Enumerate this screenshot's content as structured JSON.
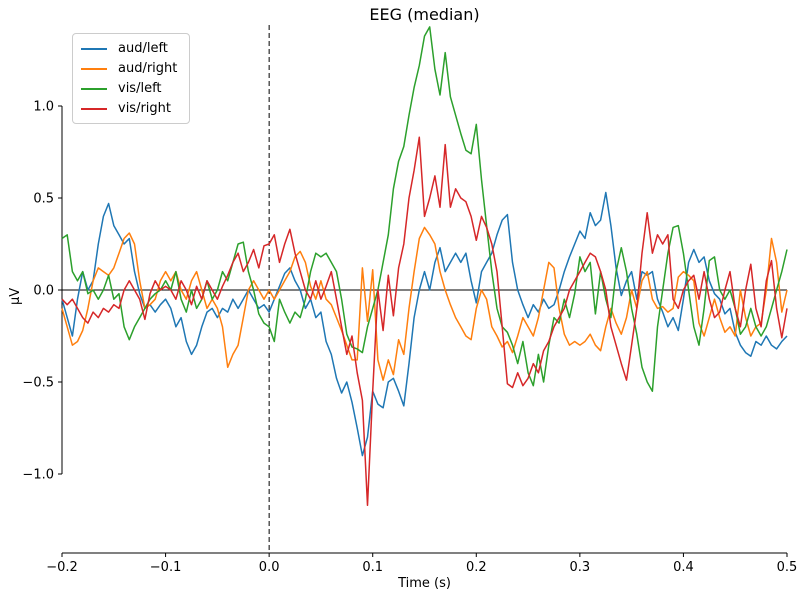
{
  "title": "EEG (median)",
  "xlabel": "Time (s)",
  "ylabel": "µV",
  "axes": {
    "x_tick_labels": [
      "−0.2",
      "−0.1",
      "0.0",
      "0.1",
      "0.2",
      "0.3",
      "0.4",
      "0.5"
    ],
    "x_tick_values": [
      -0.2,
      -0.1,
      0.0,
      0.1,
      0.2,
      0.3,
      0.4,
      0.5
    ],
    "y_tick_labels": [
      "1.0",
      "0.5",
      "0.0",
      "−0.5",
      "−1.0"
    ],
    "y_tick_values": [
      1.0,
      0.5,
      0.0,
      -0.5,
      -1.0
    ]
  },
  "legend": {
    "position": "upper-left",
    "items": [
      {
        "label": "aud/left",
        "color": "#1f77b4"
      },
      {
        "label": "aud/right",
        "color": "#ff7f0e"
      },
      {
        "label": "vis/left",
        "color": "#2ca02c"
      },
      {
        "label": "vis/right",
        "color": "#d62728"
      }
    ]
  },
  "chart_data": {
    "type": "line",
    "title": "EEG (median)",
    "xlabel": "Time (s)",
    "ylabel": "µV",
    "xlim": [
      -0.2,
      0.5
    ],
    "ylim": [
      -1.44,
      1.44
    ],
    "grid": false,
    "legend_position": "upper left",
    "annotations": {
      "vline_x": 0.0,
      "vline_style": "dashed",
      "hline_y": 0.0,
      "hline_style": "solid"
    },
    "x_start": -0.2,
    "x_step": 0.005,
    "series": [
      {
        "name": "aud/left",
        "color": "#1f77b4",
        "values": [
          -0.05,
          -0.15,
          -0.25,
          -0.05,
          0.1,
          0.0,
          0.05,
          0.25,
          0.4,
          0.47,
          0.35,
          0.3,
          0.25,
          0.28,
          0.1,
          -0.02,
          -0.1,
          -0.08,
          -0.12,
          -0.08,
          -0.05,
          -0.1,
          -0.2,
          -0.15,
          -0.28,
          -0.35,
          -0.3,
          -0.2,
          -0.12,
          -0.1,
          -0.15,
          -0.1,
          -0.12,
          -0.05,
          -0.1,
          -0.05,
          0.0,
          -0.05,
          -0.1,
          -0.08,
          -0.12,
          -0.05,
          0.02,
          0.09,
          0.12,
          0.05,
          0.0,
          -0.1,
          -0.05,
          -0.15,
          -0.12,
          -0.28,
          -0.35,
          -0.48,
          -0.56,
          -0.5,
          -0.61,
          -0.75,
          -0.9,
          -0.8,
          -0.55,
          -0.62,
          -0.64,
          -0.5,
          -0.48,
          -0.55,
          -0.63,
          -0.4,
          -0.15,
          0.0,
          0.1,
          0.0,
          0.15,
          0.23,
          0.1,
          0.15,
          0.2,
          0.15,
          0.2,
          0.05,
          -0.07,
          0.1,
          0.15,
          0.2,
          0.3,
          0.38,
          0.41,
          0.15,
          0.0,
          -0.08,
          -0.15,
          -0.08,
          -0.12,
          -0.05,
          -0.1,
          -0.08,
          0.0,
          0.1,
          0.18,
          0.25,
          0.32,
          0.28,
          0.42,
          0.35,
          0.38,
          0.53,
          0.35,
          0.12,
          -0.03,
          0.05,
          0.1,
          -0.05,
          0.1,
          0.08,
          0.1,
          -0.05,
          -0.12,
          -0.2,
          -0.15,
          -0.22,
          -0.05,
          0.15,
          0.22,
          0.15,
          0.18,
          0.05,
          -0.02,
          -0.05,
          -0.13,
          -0.1,
          -0.23,
          -0.3,
          -0.34,
          -0.36,
          -0.28,
          -0.3,
          -0.25,
          -0.3,
          -0.32,
          -0.28,
          -0.25
        ]
      },
      {
        "name": "aud/right",
        "color": "#ff7f0e",
        "values": [
          -0.1,
          -0.2,
          -0.3,
          -0.28,
          -0.22,
          -0.1,
          0.05,
          0.12,
          0.1,
          0.08,
          0.12,
          0.2,
          0.28,
          0.31,
          0.25,
          0.05,
          -0.1,
          -0.08,
          -0.05,
          0.05,
          0.1,
          0.05,
          0.1,
          0.0,
          -0.05,
          0.05,
          0.1,
          0.0,
          -0.1,
          -0.05,
          -0.1,
          -0.2,
          -0.42,
          -0.35,
          -0.3,
          -0.15,
          0.0,
          0.05,
          0.0,
          -0.05,
          0.0,
          -0.05,
          0.0,
          0.05,
          0.1,
          0.18,
          0.21,
          0.15,
          0.02,
          -0.05,
          0.05,
          -0.05,
          -0.08,
          -0.15,
          -0.22,
          -0.3,
          -0.38,
          -0.38,
          0.12,
          -0.17,
          0.11,
          -0.38,
          -0.49,
          -0.38,
          -0.46,
          -0.27,
          -0.35,
          -0.1,
          0.1,
          0.28,
          0.34,
          0.3,
          0.25,
          0.1,
          0.0,
          -0.08,
          -0.15,
          -0.2,
          -0.25,
          -0.27,
          -0.1,
          0.0,
          -0.05,
          -0.2,
          -0.25,
          -0.31,
          -0.28,
          -0.34,
          -0.25,
          -0.15,
          -0.2,
          -0.25,
          -0.15,
          0.0,
          0.15,
          0.12,
          -0.1,
          -0.24,
          -0.3,
          -0.28,
          -0.3,
          -0.28,
          -0.24,
          -0.3,
          -0.33,
          -0.2,
          -0.1,
          -0.18,
          -0.24,
          -0.15,
          0.0,
          -0.1,
          0.05,
          0.1,
          -0.05,
          -0.1,
          -0.09,
          -0.12,
          -0.1,
          0.07,
          0.1,
          0.08,
          0.05,
          -0.18,
          -0.25,
          -0.15,
          -0.05,
          -0.15,
          -0.23,
          -0.2,
          -0.25,
          0.0,
          -0.15,
          -0.25,
          -0.2,
          -0.18,
          0.0,
          0.28,
          0.15,
          -0.12,
          0.0
        ]
      },
      {
        "name": "vis/left",
        "color": "#2ca02c",
        "values": [
          0.28,
          0.3,
          0.1,
          0.05,
          0.1,
          -0.02,
          0.0,
          -0.05,
          0.0,
          0.08,
          -0.05,
          -0.02,
          -0.2,
          -0.27,
          -0.2,
          -0.15,
          -0.1,
          -0.05,
          -0.02,
          0.0,
          0.05,
          0.0,
          0.1,
          -0.05,
          -0.12,
          0.0,
          -0.1,
          -0.05,
          0.05,
          -0.05,
          0.0,
          0.1,
          0.05,
          0.15,
          0.25,
          0.26,
          0.1,
          0.0,
          -0.13,
          -0.18,
          -0.2,
          -0.28,
          -0.05,
          -0.12,
          -0.18,
          -0.12,
          -0.15,
          -0.05,
          0.1,
          0.2,
          0.18,
          0.2,
          0.15,
          0.1,
          -0.05,
          -0.24,
          -0.31,
          -0.32,
          -0.34,
          -0.2,
          -0.1,
          0.0,
          0.15,
          0.3,
          0.55,
          0.7,
          0.78,
          0.95,
          1.1,
          1.22,
          1.38,
          1.43,
          1.2,
          1.06,
          1.29,
          1.05,
          0.95,
          0.85,
          0.76,
          0.74,
          0.9,
          0.6,
          0.35,
          0.1,
          -0.1,
          -0.2,
          -0.23,
          -0.3,
          -0.4,
          -0.28,
          -0.45,
          -0.52,
          -0.35,
          -0.5,
          -0.3,
          -0.15,
          -0.18,
          -0.05,
          -0.15,
          -0.02,
          0.18,
          0.1,
          0.15,
          -0.13,
          0.1,
          -0.05,
          -0.15,
          0.1,
          0.23,
          0.1,
          -0.1,
          -0.24,
          -0.42,
          -0.5,
          -0.55,
          -0.2,
          0.0,
          0.2,
          0.34,
          0.35,
          0.2,
          0.0,
          -0.2,
          -0.3,
          -0.1,
          0.16,
          0.18,
          0.0,
          -0.05,
          0.0,
          -0.1,
          -0.24,
          -0.2,
          -0.1,
          -0.2,
          -0.25,
          -0.2,
          -0.1,
          0.0,
          0.1,
          0.22
        ]
      },
      {
        "name": "vis/right",
        "color": "#d62728",
        "values": [
          -0.05,
          -0.08,
          -0.05,
          -0.1,
          -0.15,
          -0.18,
          -0.12,
          -0.15,
          -0.1,
          -0.12,
          -0.08,
          -0.1,
          0.0,
          0.05,
          0.0,
          -0.05,
          -0.16,
          -0.02,
          0.05,
          0.0,
          0.02,
          0.0,
          -0.05,
          0.05,
          0.0,
          -0.08,
          0.02,
          -0.05,
          0.05,
          0.0,
          -0.05,
          0.02,
          0.08,
          0.15,
          0.2,
          0.1,
          0.15,
          0.22,
          0.12,
          0.24,
          0.25,
          0.3,
          0.15,
          0.25,
          0.33,
          0.2,
          0.1,
          0.0,
          -0.05,
          0.05,
          -0.05,
          0.02,
          0.1,
          -0.05,
          -0.2,
          -0.35,
          -0.25,
          -0.45,
          -0.6,
          -1.17,
          -0.55,
          0.0,
          -0.22,
          0.08,
          -0.14,
          0.12,
          0.25,
          0.5,
          0.65,
          0.83,
          0.4,
          0.5,
          0.62,
          0.45,
          0.79,
          0.45,
          0.55,
          0.5,
          0.48,
          0.4,
          0.27,
          0.4,
          0.34,
          0.25,
          0.1,
          -0.2,
          -0.51,
          -0.53,
          -0.45,
          -0.52,
          -0.48,
          -0.4,
          -0.45,
          -0.33,
          -0.28,
          -0.2,
          -0.15,
          -0.1,
          0.0,
          0.05,
          0.1,
          0.15,
          0.2,
          0.18,
          0.1,
          0.0,
          -0.2,
          -0.3,
          -0.4,
          -0.49,
          -0.3,
          -0.1,
          0.2,
          0.42,
          0.2,
          0.3,
          0.25,
          0.3,
          -0.05,
          -0.1,
          0.0,
          0.05,
          0.08,
          -0.05,
          0.1,
          -0.05,
          -0.15,
          -0.12,
          0.0,
          0.1,
          -0.1,
          -0.2,
          0.0,
          0.14,
          -0.1,
          -0.2,
          0.05,
          0.16,
          -0.1,
          -0.26,
          -0.1
        ]
      }
    ]
  }
}
